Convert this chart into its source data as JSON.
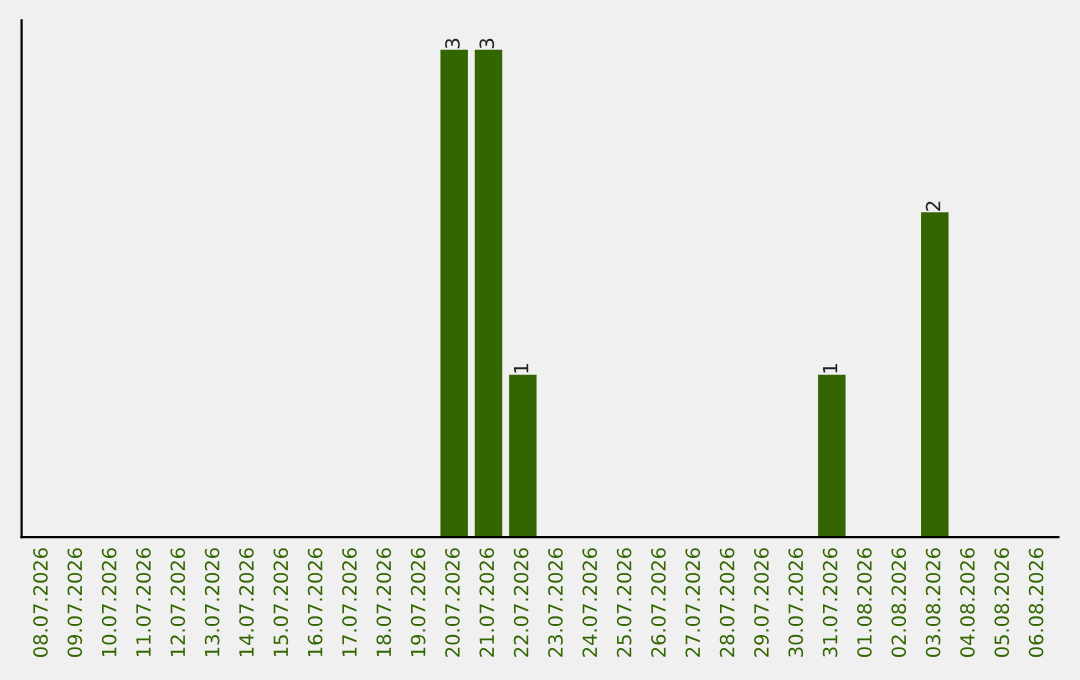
{
  "chart_data": {
    "type": "bar",
    "categories": [
      "08.07.2026",
      "09.07.2026",
      "10.07.2026",
      "11.07.2026",
      "12.07.2026",
      "13.07.2026",
      "14.07.2026",
      "15.07.2026",
      "16.07.2026",
      "17.07.2026",
      "18.07.2026",
      "19.07.2026",
      "20.07.2026",
      "21.07.2026",
      "22.07.2026",
      "23.07.2026",
      "24.07.2026",
      "25.07.2026",
      "26.07.2026",
      "27.07.2026",
      "28.07.2026",
      "29.07.2026",
      "30.07.2026",
      "31.07.2026",
      "01.08.2026",
      "02.08.2026",
      "03.08.2026",
      "04.08.2026",
      "05.08.2026",
      "06.08.2026"
    ],
    "values": [
      null,
      null,
      null,
      null,
      null,
      null,
      null,
      null,
      null,
      null,
      null,
      null,
      3,
      3,
      1,
      null,
      null,
      null,
      null,
      null,
      null,
      null,
      null,
      1,
      null,
      null,
      2,
      null,
      null,
      null
    ],
    "data_labels": true,
    "color": "#336600",
    "tick_labels": "x",
    "grid": false
  }
}
